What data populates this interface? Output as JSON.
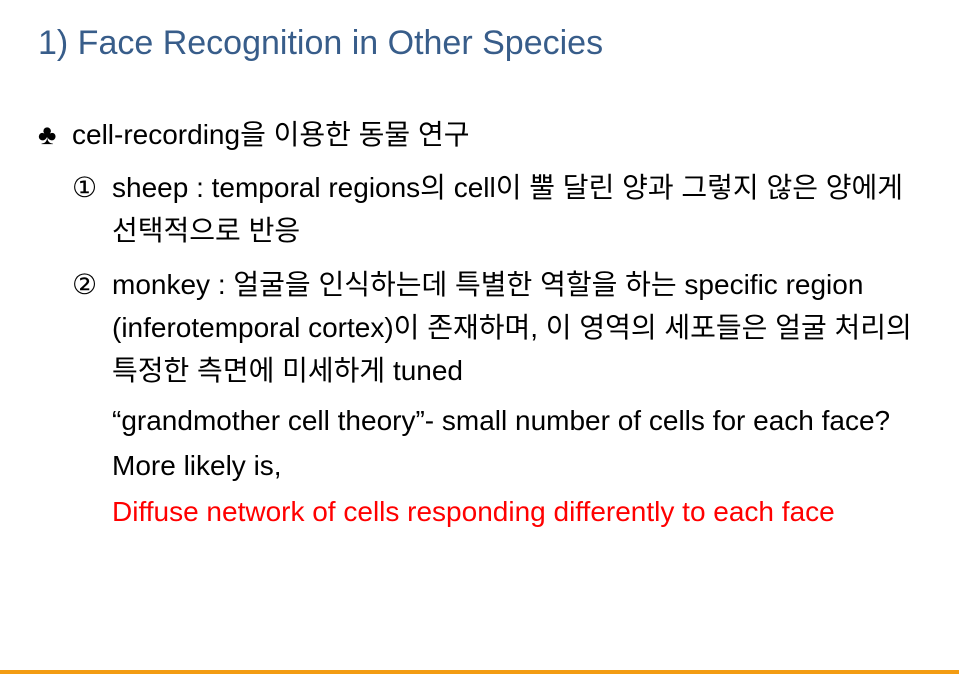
{
  "colors": {
    "title": "#385d8a",
    "body": "#000000",
    "highlight": "#ff0000",
    "rule": "#f39c12",
    "background": "#ffffff"
  },
  "typography": {
    "title_fontsize_pt": 26,
    "body_fontsize_pt": 21,
    "font_family": "Arial / Malgun Gothic"
  },
  "title": "1) Face Recognition in Other Species",
  "club_marker": "♣",
  "club_text": "cell-recording을 이용한 동물 연구",
  "items": [
    {
      "marker": "①",
      "text": "sheep : temporal regions의 cell이 뿔 달린 양과 그렇지 않은 양에게 선택적으로 반응"
    },
    {
      "marker": "②",
      "text": "monkey : 얼굴을 인식하는데 특별한 역할을 하는 specific region (inferotemporal cortex)이 존재하며, 이 영역의 세포들은 얼굴 처리의 특정한 측면에 미세하게 tuned"
    }
  ],
  "quote_line": "“grandmother cell theory”- small number of cells for each face?",
  "more_likely": "More likely is,",
  "diffuse_line": "Diffuse network of cells responding differently to  each face"
}
